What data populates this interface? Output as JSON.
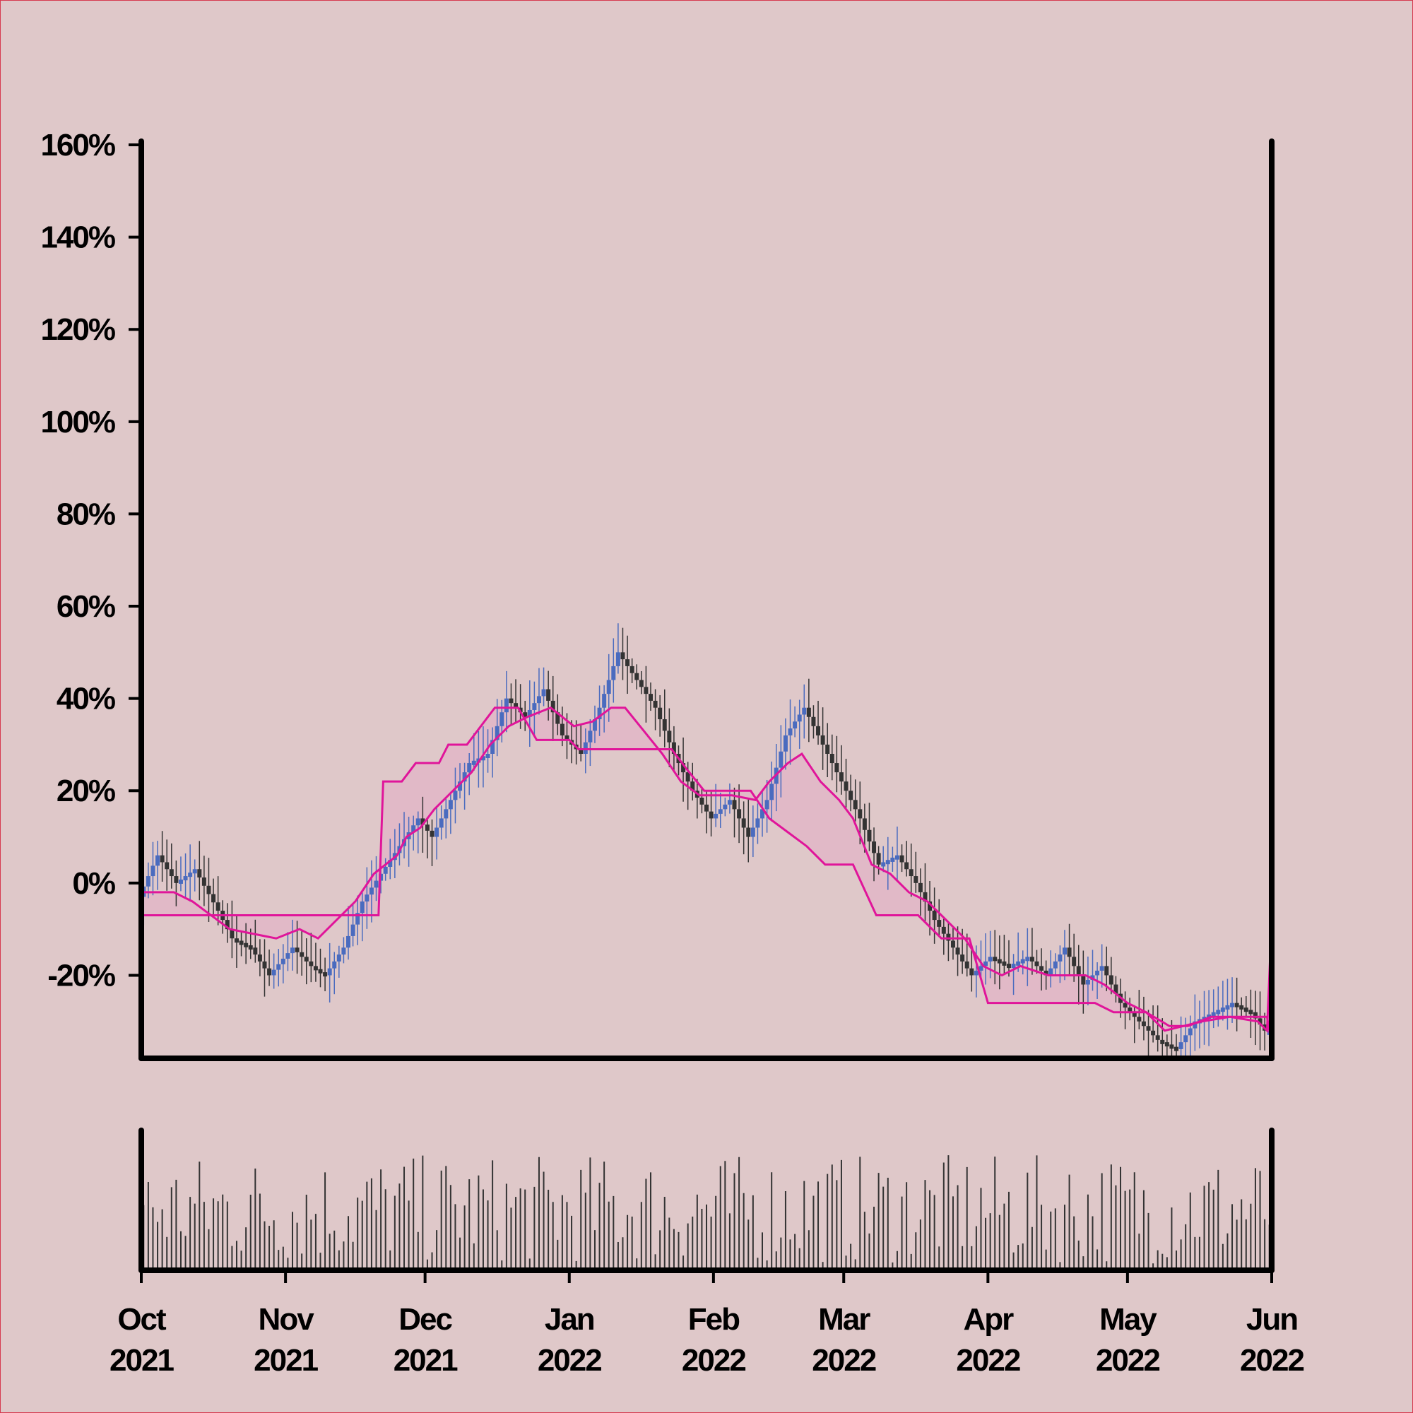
{
  "colors": {
    "background": "#dfc8c9",
    "border": "#d63a4f",
    "axis": "#000000",
    "candle_up": "#4a6bbf",
    "candle_down": "#333333",
    "band_line": "#e0159a",
    "band_fill": "#e2b4c6",
    "volume_bar": "#333333"
  },
  "chart_data": [
    {
      "type": "candlestick",
      "title": "",
      "xlabel": "",
      "ylabel": "",
      "ylim": [
        -38,
        160
      ],
      "y_ticks": [
        {
          "value": 160,
          "label": "160%"
        },
        {
          "value": 140,
          "label": "140%"
        },
        {
          "value": 120,
          "label": "120%"
        },
        {
          "value": 100,
          "label": "100%"
        },
        {
          "value": 80,
          "label": "80%"
        },
        {
          "value": 60,
          "label": "60%"
        },
        {
          "value": 40,
          "label": "40%"
        },
        {
          "value": 20,
          "label": "20%"
        },
        {
          "value": 0,
          "label": "0%"
        },
        {
          "value": -20,
          "label": "-20%"
        }
      ],
      "x_range": [
        "2021-10-01",
        "2022-06-01"
      ],
      "x_ticks": [
        {
          "date": "2021-10-01",
          "month": "Oct",
          "year": "2021"
        },
        {
          "date": "2021-11-01",
          "month": "Nov",
          "year": "2021"
        },
        {
          "date": "2021-12-01",
          "month": "Dec",
          "year": "2021"
        },
        {
          "date": "2022-01-01",
          "month": "Jan",
          "year": "2022"
        },
        {
          "date": "2022-02-01",
          "month": "Feb",
          "year": "2022"
        },
        {
          "date": "2022-03-01",
          "month": "Mar",
          "year": "2022"
        },
        {
          "date": "2022-04-01",
          "month": "Apr",
          "year": "2022"
        },
        {
          "date": "2022-05-01",
          "month": "May",
          "year": "2022"
        },
        {
          "date": "2022-06-01",
          "month": "Jun",
          "year": "2022"
        }
      ],
      "close_path": [
        [
          "2021-10-01",
          -3
        ],
        [
          "2021-10-05",
          6
        ],
        [
          "2021-10-09",
          0
        ],
        [
          "2021-10-13",
          3
        ],
        [
          "2021-10-18",
          -6
        ],
        [
          "2021-10-21",
          -12
        ],
        [
          "2021-10-25",
          -14
        ],
        [
          "2021-10-29",
          -20
        ],
        [
          "2021-11-03",
          -14
        ],
        [
          "2021-11-07",
          -18
        ],
        [
          "2021-11-10",
          -20
        ],
        [
          "2021-11-14",
          -14
        ],
        [
          "2021-11-18",
          -4
        ],
        [
          "2021-11-22",
          2
        ],
        [
          "2021-11-26",
          8
        ],
        [
          "2021-11-30",
          14
        ],
        [
          "2021-12-03",
          10
        ],
        [
          "2021-12-07",
          18
        ],
        [
          "2021-12-11",
          26
        ],
        [
          "2021-12-15",
          28
        ],
        [
          "2021-12-19",
          40
        ],
        [
          "2021-12-23",
          36
        ],
        [
          "2021-12-27",
          42
        ],
        [
          "2021-12-31",
          32
        ],
        [
          "2022-01-04",
          28
        ],
        [
          "2022-01-08",
          38
        ],
        [
          "2022-01-12",
          50
        ],
        [
          "2022-01-16",
          44
        ],
        [
          "2022-01-20",
          38
        ],
        [
          "2022-01-24",
          28
        ],
        [
          "2022-01-28",
          20
        ],
        [
          "2022-02-01",
          14
        ],
        [
          "2022-02-05",
          18
        ],
        [
          "2022-02-09",
          10
        ],
        [
          "2022-02-13",
          18
        ],
        [
          "2022-02-17",
          32
        ],
        [
          "2022-02-21",
          38
        ],
        [
          "2022-02-25",
          30
        ],
        [
          "2022-03-01",
          22
        ],
        [
          "2022-03-05",
          14
        ],
        [
          "2022-03-09",
          4
        ],
        [
          "2022-03-13",
          6
        ],
        [
          "2022-03-17",
          0
        ],
        [
          "2022-03-21",
          -8
        ],
        [
          "2022-03-25",
          -14
        ],
        [
          "2022-03-29",
          -20
        ],
        [
          "2022-04-02",
          -16
        ],
        [
          "2022-04-06",
          -18
        ],
        [
          "2022-04-10",
          -16
        ],
        [
          "2022-04-14",
          -20
        ],
        [
          "2022-04-18",
          -14
        ],
        [
          "2022-04-22",
          -22
        ],
        [
          "2022-04-26",
          -18
        ],
        [
          "2022-04-30",
          -26
        ],
        [
          "2022-05-04",
          -30
        ],
        [
          "2022-05-08",
          -34
        ],
        [
          "2022-05-12",
          -36
        ],
        [
          "2022-05-16",
          -30
        ],
        [
          "2022-05-20",
          -28
        ],
        [
          "2022-05-24",
          -26
        ],
        [
          "2022-05-28",
          -28
        ],
        [
          "2022-05-31",
          -32
        ]
      ],
      "band_upper": [
        [
          "2021-10-01",
          -2
        ],
        [
          "2021-10-08",
          -2
        ],
        [
          "2021-10-12",
          -4
        ],
        [
          "2021-10-20",
          -10
        ],
        [
          "2021-10-30",
          -12
        ],
        [
          "2021-11-04",
          -10
        ],
        [
          "2021-11-08",
          -12
        ],
        [
          "2021-11-12",
          -8
        ],
        [
          "2021-11-16",
          -4
        ],
        [
          "2021-11-20",
          2
        ],
        [
          "2021-11-25",
          6
        ],
        [
          "2021-11-27",
          10
        ],
        [
          "2021-11-30",
          12
        ],
        [
          "2021-12-03",
          16
        ],
        [
          "2021-12-07",
          20
        ],
        [
          "2021-12-11",
          24
        ],
        [
          "2021-12-15",
          30
        ],
        [
          "2021-12-19",
          34
        ],
        [
          "2021-12-23",
          36
        ],
        [
          "2021-12-28",
          38
        ],
        [
          "2022-01-02",
          34
        ],
        [
          "2022-01-06",
          35
        ],
        [
          "2022-01-10",
          38
        ],
        [
          "2022-01-13",
          38
        ],
        [
          "2022-01-17",
          33
        ],
        [
          "2022-01-21",
          28
        ],
        [
          "2022-01-25",
          22
        ],
        [
          "2022-01-29",
          19
        ],
        [
          "2022-02-05",
          19
        ],
        [
          "2022-02-10",
          18
        ],
        [
          "2022-02-13",
          22
        ],
        [
          "2022-02-17",
          26
        ],
        [
          "2022-02-20",
          28
        ],
        [
          "2022-02-24",
          22
        ],
        [
          "2022-02-28",
          18
        ],
        [
          "2022-03-03",
          14
        ],
        [
          "2022-03-07",
          4
        ],
        [
          "2022-03-11",
          2
        ],
        [
          "2022-03-15",
          -2
        ],
        [
          "2022-03-19",
          -4
        ],
        [
          "2022-03-23",
          -8
        ],
        [
          "2022-03-27",
          -12
        ],
        [
          "2022-03-31",
          -18
        ],
        [
          "2022-04-04",
          -20
        ],
        [
          "2022-04-08",
          -18
        ],
        [
          "2022-04-14",
          -20
        ],
        [
          "2022-04-22",
          -20
        ],
        [
          "2022-04-26",
          -22
        ],
        [
          "2022-05-01",
          -26
        ],
        [
          "2022-05-05",
          -28
        ],
        [
          "2022-05-09",
          -32
        ],
        [
          "2022-05-13",
          -31
        ],
        [
          "2022-05-17",
          -30
        ],
        [
          "2022-05-23",
          -29
        ],
        [
          "2022-05-29",
          -30
        ],
        [
          "2022-05-31",
          -32
        ],
        [
          "2022-06-01",
          -8
        ]
      ],
      "band_lower": [
        [
          "2021-10-01",
          -7
        ],
        [
          "2021-11-21",
          -7
        ],
        [
          "2021-11-22",
          22
        ],
        [
          "2021-11-26",
          22
        ],
        [
          "2021-11-29",
          26
        ],
        [
          "2021-12-04",
          26
        ],
        [
          "2021-12-06",
          30
        ],
        [
          "2021-12-10",
          30
        ],
        [
          "2021-12-16",
          38
        ],
        [
          "2021-12-21",
          38
        ],
        [
          "2021-12-25",
          31
        ],
        [
          "2022-01-01",
          31
        ],
        [
          "2022-01-03",
          29
        ],
        [
          "2022-01-23",
          29
        ],
        [
          "2022-01-26",
          25
        ],
        [
          "2022-01-30",
          20
        ],
        [
          "2022-02-02",
          20
        ],
        [
          "2022-02-09",
          20
        ],
        [
          "2022-02-13",
          14
        ],
        [
          "2022-02-17",
          11
        ],
        [
          "2022-02-21",
          8
        ],
        [
          "2022-02-25",
          4
        ],
        [
          "2022-03-03",
          4
        ],
        [
          "2022-03-08",
          -7
        ],
        [
          "2022-03-17",
          -7
        ],
        [
          "2022-03-22",
          -12
        ],
        [
          "2022-03-28",
          -12
        ],
        [
          "2022-04-01",
          -26
        ],
        [
          "2022-04-24",
          -26
        ],
        [
          "2022-04-28",
          -28
        ],
        [
          "2022-05-05",
          -28
        ],
        [
          "2022-05-10",
          -31
        ],
        [
          "2022-05-14",
          -31
        ],
        [
          "2022-05-19",
          -29
        ],
        [
          "2022-05-31",
          -29
        ],
        [
          "2022-06-01",
          -35
        ]
      ]
    },
    {
      "type": "bar",
      "title": "",
      "xlabel": "",
      "ylabel": "",
      "series": "daily volume (relative, unlabeled axis)",
      "ylim": [
        0,
        100
      ]
    }
  ]
}
